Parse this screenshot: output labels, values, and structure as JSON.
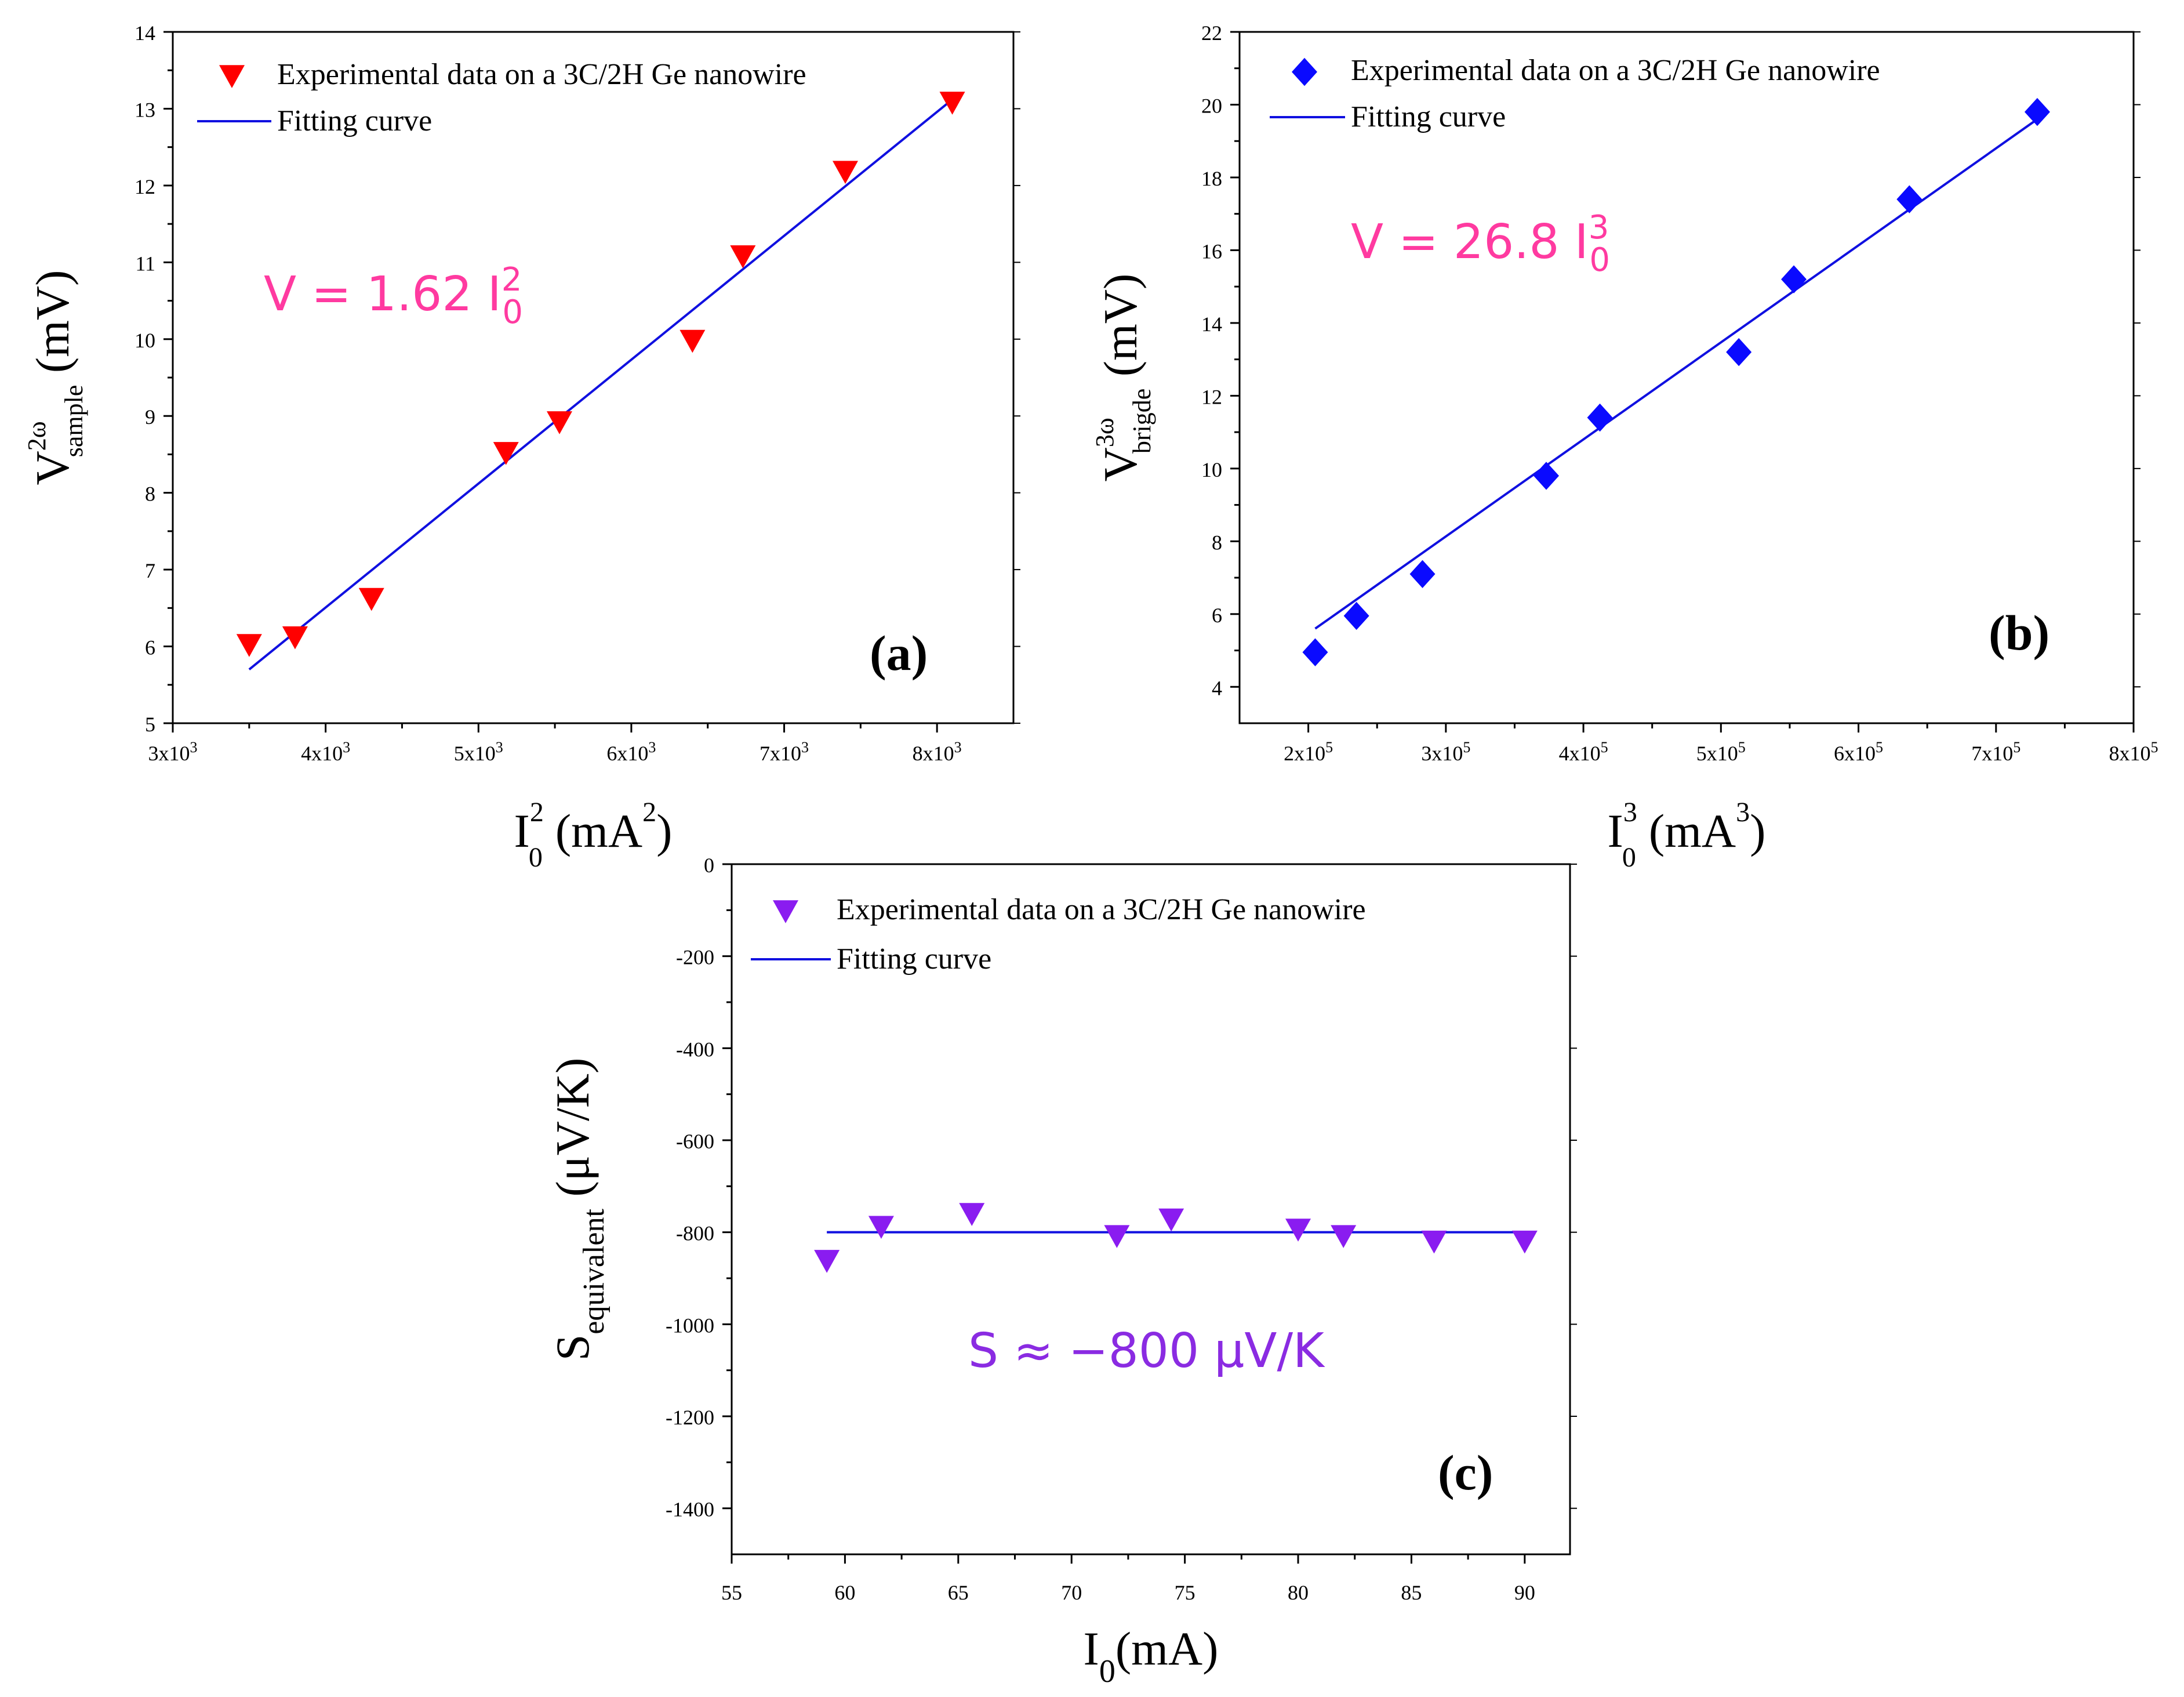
{
  "colors": {
    "fit_line": "#1010e0",
    "panel_a_marker": "#ff0000",
    "panel_b_marker": "#0a0aff",
    "panel_c_marker": "#8a1cf0",
    "eq_a": "#ff3aa0",
    "eq_b": "#ff3aa0",
    "eq_c": "#8a2be2"
  },
  "chart_data": [
    {
      "type": "scatter",
      "panel_label": "(a)",
      "xlim": [
        3000,
        8500
      ],
      "ylim": [
        5,
        14
      ],
      "x_ticks": [
        3000,
        4000,
        5000,
        6000,
        7000,
        8000
      ],
      "x_tick_labels": [
        {
          "base": "3x10",
          "exp": "3"
        },
        {
          "base": "4x10",
          "exp": "3"
        },
        {
          "base": "5x10",
          "exp": "3"
        },
        {
          "base": "6x10",
          "exp": "3"
        },
        {
          "base": "7x10",
          "exp": "3"
        },
        {
          "base": "8x10",
          "exp": "3"
        }
      ],
      "y_ticks": [
        5,
        6,
        7,
        8,
        9,
        10,
        11,
        12,
        13,
        14
      ],
      "y_tick_labels": [
        "5",
        "6",
        "7",
        "8",
        "9",
        "10",
        "11",
        "12",
        "13",
        "14"
      ],
      "xlabel": {
        "main": "I",
        "sub": "0",
        "sup": "2",
        "rest": "(mA",
        "rest_sup": "2",
        "close": ")"
      },
      "ylabel": {
        "main": "V",
        "sup": "2ω",
        "sub": "sample",
        "unit": "(mV)"
      },
      "equation": {
        "lhs": "V = 1.62 I",
        "sup": "2",
        "sub": "0"
      },
      "series": [
        {
          "name": "Experimental data on a 3C/2H Ge nanowire",
          "marker": "triangle-down",
          "x": [
            3500,
            3800,
            4300,
            5180,
            5530,
            6400,
            6730,
            7400,
            8100
          ],
          "y": [
            6.02,
            6.12,
            6.62,
            8.52,
            8.92,
            9.98,
            11.08,
            12.18,
            13.08
          ]
        },
        {
          "name": "Fitting curve",
          "marker": "line",
          "x": [
            3500,
            8100
          ],
          "y": [
            5.7,
            13.12
          ]
        }
      ],
      "legend_position": "top-left"
    },
    {
      "type": "scatter",
      "panel_label": "(b)",
      "xlim": [
        150000,
        800000
      ],
      "ylim": [
        3,
        22
      ],
      "x_ticks": [
        200000,
        300000,
        400000,
        500000,
        600000,
        700000,
        800000
      ],
      "x_tick_labels": [
        {
          "base": "2x10",
          "exp": "5"
        },
        {
          "base": "3x10",
          "exp": "5"
        },
        {
          "base": "4x10",
          "exp": "5"
        },
        {
          "base": "5x10",
          "exp": "5"
        },
        {
          "base": "6x10",
          "exp": "5"
        },
        {
          "base": "7x10",
          "exp": "5"
        },
        {
          "base": "8x10",
          "exp": "5"
        }
      ],
      "y_ticks": [
        4,
        6,
        8,
        10,
        12,
        14,
        16,
        18,
        20,
        22
      ],
      "y_tick_labels": [
        "4",
        "6",
        "8",
        "10",
        "12",
        "14",
        "16",
        "18",
        "20",
        "22"
      ],
      "xlabel": {
        "main": "I",
        "sub": "0",
        "sup": "3",
        "rest": "(mA",
        "rest_sup": "3",
        "close": ")"
      },
      "ylabel": {
        "main": "V",
        "sup": "3ω",
        "sub": "brigde",
        "unit": "(mV)"
      },
      "equation": {
        "lhs": "V = 26.8 I",
        "sup": "3",
        "sub": "0"
      },
      "series": [
        {
          "name": "Experimental data on a 3C/2H Ge nanowire",
          "marker": "diamond",
          "x": [
            205000,
            235000,
            283000,
            373000,
            412000,
            513000,
            553000,
            637000,
            730000
          ],
          "y": [
            4.95,
            5.95,
            7.1,
            9.8,
            11.4,
            13.2,
            15.2,
            17.4,
            19.8
          ]
        },
        {
          "name": "Fitting curve",
          "marker": "line",
          "x": [
            205000,
            730000
          ],
          "y": [
            5.6,
            19.6
          ]
        }
      ],
      "legend_position": "top-left"
    },
    {
      "type": "scatter",
      "panel_label": "(c)",
      "xlim": [
        55,
        92
      ],
      "ylim": [
        -1500,
        0
      ],
      "x_ticks": [
        55,
        60,
        65,
        70,
        75,
        80,
        85,
        90
      ],
      "x_tick_labels": [
        "55",
        "60",
        "65",
        "70",
        "75",
        "80",
        "85",
        "90"
      ],
      "y_ticks": [
        0,
        -200,
        -400,
        -600,
        -800,
        -1000,
        -1200,
        -1400
      ],
      "y_tick_labels": [
        "0",
        "-200",
        "-400",
        "-600",
        "-800",
        "-1000",
        "-1200",
        "-1400"
      ],
      "xlabel": {
        "main": "I",
        "sub": "0",
        "rest": "(mA)"
      },
      "ylabel": {
        "main": "S",
        "sub": "equivalent",
        "unit": "(μV/K)"
      },
      "equation": {
        "lhs": "S ≈ −800 μV/K"
      },
      "series": [
        {
          "name": "Experimental data on a 3C/2H Ge nanowire",
          "marker": "triangle-down",
          "x": [
            59.2,
            61.6,
            65.6,
            72,
            74.4,
            80,
            82,
            86,
            90
          ],
          "y": [
            -862,
            -788,
            -760,
            -808,
            -772,
            -794,
            -808,
            -820,
            -820
          ]
        },
        {
          "name": "Fitting curve",
          "marker": "line",
          "x": [
            59.2,
            90
          ],
          "y": [
            -800,
            -800
          ]
        }
      ],
      "legend_position": "top-left"
    }
  ]
}
